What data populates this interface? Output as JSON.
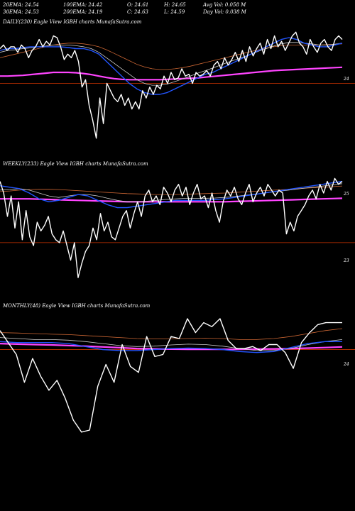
{
  "header": {
    "row1": [
      "20EMA: 24.54",
      "100EMA: 24.42",
      "O: 24.61",
      "H: 24.65",
      "Avg Vol: 0.058  M"
    ],
    "row2": [
      "30EMA: 24.53",
      "200EMA: 24.19",
      "C: 24.63",
      "L: 24.59",
      "Day Vol: 0.038  M"
    ]
  },
  "colors": {
    "price": "#ffffff",
    "ema20": "#2255ff",
    "ema30": "#cccccc",
    "ema100": "#cc6633",
    "ema200": "#ff44ff",
    "ref": "#cc3300"
  },
  "chart_data": [
    {
      "type": "line",
      "title": "DAILY(230) Eagle  View  IGBH charts MunafaSutra.com",
      "y_label": "24",
      "ylim": [
        22.4,
        25.6
      ],
      "ref_line": 24.0,
      "series": [
        {
          "key": "price",
          "values": [
            24.95,
            25.05,
            24.9,
            25.0,
            25.0,
            24.85,
            25.05,
            24.95,
            24.7,
            24.9,
            25.0,
            25.2,
            25.0,
            25.15,
            25.05,
            25.3,
            25.25,
            25.0,
            24.65,
            24.8,
            24.7,
            24.9,
            24.6,
            23.9,
            24.1,
            23.4,
            23.0,
            22.5,
            23.6,
            22.9,
            24.0,
            23.8,
            23.6,
            23.5,
            23.7,
            23.4,
            23.6,
            23.3,
            23.5,
            23.3,
            23.8,
            23.6,
            23.9,
            23.7,
            23.95,
            23.85,
            24.2,
            24.0,
            24.3,
            24.1,
            24.15,
            24.4,
            24.2,
            24.25,
            24.0,
            24.3,
            24.2,
            24.25,
            24.35,
            24.2,
            24.5,
            24.6,
            24.4,
            24.7,
            24.5,
            24.65,
            24.85,
            24.6,
            24.9,
            24.6,
            25.0,
            24.75,
            24.95,
            25.1,
            24.8,
            25.2,
            24.95,
            25.3,
            25.0,
            25.15,
            24.9,
            25.1,
            25.3,
            25.4,
            25.1,
            25.0,
            24.8,
            25.2,
            25.0,
            24.85,
            25.1,
            25.2,
            25.0,
            24.9,
            25.2,
            25.3,
            25.2
          ]
        },
        {
          "key": "ema20",
          "values": [
            24.9,
            24.95,
            24.95,
            24.98,
            25.0,
            25.0,
            25.0,
            25.0,
            25.0,
            24.98,
            24.95,
            24.95,
            24.9,
            24.8,
            24.6,
            24.4,
            24.2,
            24.0,
            23.85,
            23.75,
            23.7,
            23.7,
            23.75,
            23.85,
            23.95,
            24.05,
            24.15,
            24.25,
            24.3,
            24.4,
            24.5,
            24.6,
            24.7,
            24.8,
            24.9,
            25.0,
            25.1,
            25.2,
            25.25,
            25.2,
            25.1,
            25.05,
            25.0,
            25.0,
            25.05,
            25.1
          ]
        },
        {
          "key": "ema30",
          "values": [
            24.85,
            24.9,
            24.92,
            24.95,
            24.97,
            25.0,
            25.02,
            25.05,
            25.05,
            25.05,
            25.03,
            25.0,
            24.95,
            24.85,
            24.7,
            24.55,
            24.4,
            24.25,
            24.1,
            24.0,
            23.95,
            23.95,
            23.98,
            24.05,
            24.12,
            24.2,
            24.28,
            24.35,
            24.42,
            24.5,
            24.58,
            24.65,
            24.72,
            24.8,
            24.88,
            24.95,
            25.02,
            25.08,
            25.12,
            25.12,
            25.1,
            25.08,
            25.05,
            25.05,
            25.07,
            25.1
          ]
        },
        {
          "key": "ema100",
          "values": [
            24.7,
            24.75,
            24.8,
            24.85,
            24.9,
            24.95,
            25.0,
            25.05,
            25.08,
            25.1,
            25.1,
            25.08,
            25.05,
            25.0,
            24.92,
            24.82,
            24.72,
            24.62,
            24.52,
            24.45,
            24.4,
            24.38,
            24.38,
            24.4,
            24.43,
            24.47,
            24.52,
            24.57,
            24.62,
            24.67,
            24.72,
            24.77,
            24.82,
            24.87,
            24.92,
            24.97,
            25.0,
            25.03,
            25.05,
            25.05,
            25.05,
            25.05,
            25.05,
            25.06,
            25.07,
            25.08
          ]
        },
        {
          "key": "ema200",
          "values": [
            24.2,
            24.2,
            24.21,
            24.22,
            24.24,
            24.26,
            24.28,
            24.3,
            24.3,
            24.3,
            24.29,
            24.27,
            24.24,
            24.2,
            24.16,
            24.13,
            24.11,
            24.1,
            24.1,
            24.1,
            24.1,
            24.1,
            24.11,
            24.12,
            24.13,
            24.14,
            24.15,
            24.17,
            24.19,
            24.21,
            24.23,
            24.25,
            24.27,
            24.29,
            24.31,
            24.33,
            24.35,
            24.36,
            24.37,
            24.38,
            24.39,
            24.4,
            24.41,
            24.42,
            24.43,
            24.44
          ]
        }
      ]
    },
    {
      "type": "line",
      "title": "WEEKLY(233) Eagle  View  IGBH charts MunafaSutra.com",
      "y_labels": [
        "25",
        "23"
      ],
      "ylim": [
        21.0,
        25.5
      ],
      "ref_line": 22.9,
      "series": [
        {
          "key": "price",
          "values": [
            25.0,
            24.6,
            23.8,
            24.5,
            23.4,
            24.3,
            23.0,
            24.0,
            23.1,
            22.8,
            23.6,
            23.3,
            23.5,
            23.8,
            23.2,
            23.0,
            22.9,
            23.3,
            22.8,
            22.3,
            22.9,
            21.7,
            22.2,
            22.6,
            22.8,
            23.4,
            23.0,
            23.9,
            23.3,
            23.6,
            23.1,
            23.0,
            23.4,
            23.8,
            24.0,
            23.4,
            23.9,
            24.3,
            23.8,
            24.5,
            24.7,
            24.3,
            24.5,
            24.2,
            24.8,
            24.6,
            24.3,
            24.7,
            24.9,
            24.5,
            24.8,
            24.2,
            24.6,
            24.9,
            24.4,
            24.5,
            24.1,
            24.6,
            24.0,
            23.6,
            24.3,
            24.7,
            24.5,
            24.8,
            24.4,
            24.2,
            24.6,
            24.9,
            24.3,
            24.6,
            24.8,
            24.5,
            24.9,
            24.7,
            24.5,
            24.7,
            24.6,
            23.2,
            23.6,
            23.3,
            23.8,
            24.0,
            24.2,
            24.5,
            24.7,
            24.4,
            24.9,
            24.6,
            25.0,
            24.7,
            25.1,
            24.9,
            25.0
          ]
        },
        {
          "key": "ema20",
          "values": [
            24.85,
            24.8,
            24.75,
            24.6,
            24.4,
            24.3,
            24.35,
            24.45,
            24.55,
            24.5,
            24.35,
            24.2,
            24.1,
            24.1,
            24.15,
            24.2,
            24.25,
            24.3,
            24.35,
            24.35,
            24.35,
            24.35,
            24.38,
            24.4,
            24.45,
            24.5,
            24.55,
            24.6,
            24.65,
            24.7,
            24.75,
            24.8,
            24.85,
            24.9,
            24.95,
            25.0
          ]
        },
        {
          "key": "ema30",
          "values": [
            24.7,
            24.72,
            24.75,
            24.7,
            24.6,
            24.5,
            24.45,
            24.5,
            24.55,
            24.55,
            24.5,
            24.42,
            24.35,
            24.3,
            24.3,
            24.32,
            24.35,
            24.38,
            24.4,
            24.42,
            24.42,
            24.42,
            24.43,
            24.45,
            24.48,
            24.52,
            24.56,
            24.6,
            24.64,
            24.68,
            24.72,
            24.76,
            24.8,
            24.84,
            24.88,
            24.92
          ]
        },
        {
          "key": "ema100",
          "values": [
            24.65,
            24.67,
            24.7,
            24.72,
            24.73,
            24.73,
            24.72,
            24.7,
            24.68,
            24.66,
            24.64,
            24.62,
            24.6,
            24.58,
            24.57,
            24.56,
            24.55,
            24.55,
            24.55,
            24.56,
            24.57,
            24.58,
            24.59,
            24.6,
            24.62,
            24.64,
            24.66,
            24.68,
            24.7,
            24.72,
            24.74,
            24.76,
            24.78,
            24.8,
            24.82,
            24.84
          ]
        },
        {
          "key": "ema200",
          "values": [
            24.4,
            24.4,
            24.4,
            24.4,
            24.39,
            24.38,
            24.37,
            24.36,
            24.35,
            24.34,
            24.33,
            24.32,
            24.31,
            24.3,
            24.3,
            24.3,
            24.3,
            24.3,
            24.3,
            24.3,
            24.3,
            24.3,
            24.3,
            24.3,
            24.31,
            24.32,
            24.33,
            24.34,
            24.35,
            24.36,
            24.37,
            24.38,
            24.39,
            24.4,
            24.41,
            24.42
          ]
        }
      ]
    },
    {
      "type": "line",
      "title": "MONTHLY(48) Eagle  View  IGBH charts MunafaSutra.com",
      "y_label": "24",
      "ylim": [
        19.4,
        26.0
      ],
      "ref_line": 23.95,
      "series": [
        {
          "key": "price",
          "values": [
            24.9,
            24.3,
            23.7,
            22.3,
            23.5,
            22.6,
            21.9,
            22.4,
            21.5,
            20.4,
            19.8,
            19.9,
            22.1,
            23.2,
            22.3,
            24.2,
            23.1,
            22.8,
            24.6,
            23.6,
            23.7,
            24.6,
            24.5,
            25.5,
            24.8,
            25.3,
            25.1,
            25.5,
            24.4,
            24.0,
            24.0,
            24.1,
            23.9,
            24.2,
            24.2,
            23.8,
            23.0,
            24.3,
            24.8,
            25.2,
            25.3,
            25.3,
            25.3
          ]
        },
        {
          "key": "ema20",
          "values": [
            24.35,
            24.3,
            24.3,
            24.3,
            24.25,
            24.1,
            23.95,
            23.9,
            23.9,
            23.95,
            24.0,
            24.02,
            24.0,
            23.95,
            23.85,
            23.8,
            23.85,
            24.05,
            24.25,
            24.35,
            24.35
          ]
        },
        {
          "key": "ema30",
          "values": [
            24.55,
            24.5,
            24.45,
            24.45,
            24.42,
            24.35,
            24.25,
            24.15,
            24.1,
            24.12,
            24.18,
            24.22,
            24.2,
            24.12,
            24.0,
            23.9,
            23.9,
            24.0,
            24.2,
            24.35,
            24.45
          ]
        },
        {
          "key": "ema100",
          "values": [
            24.8,
            24.78,
            24.75,
            24.72,
            24.7,
            24.65,
            24.6,
            24.55,
            24.5,
            24.48,
            24.48,
            24.5,
            24.52,
            24.5,
            24.45,
            24.45,
            24.5,
            24.6,
            24.75,
            24.9,
            25.0
          ]
        },
        {
          "key": "ema200",
          "values": [
            24.25,
            24.22,
            24.2,
            24.18,
            24.15,
            24.12,
            24.08,
            24.04,
            24.0,
            23.98,
            23.97,
            23.96,
            23.96,
            23.96,
            23.96,
            23.97,
            23.98,
            24.0,
            24.02,
            24.05,
            24.08
          ]
        }
      ]
    }
  ]
}
